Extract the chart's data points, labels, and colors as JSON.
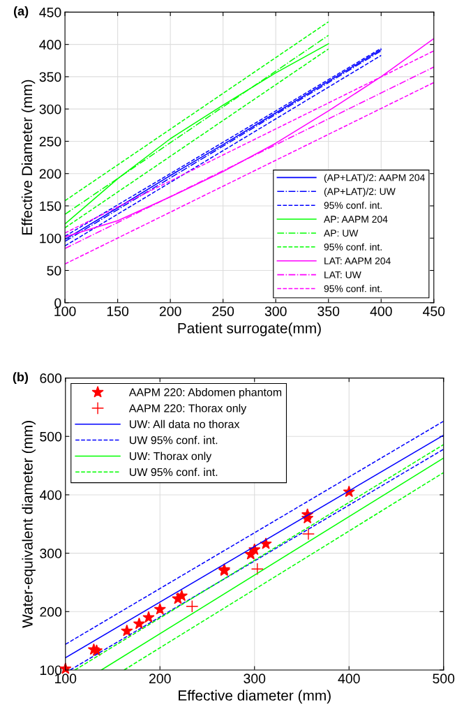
{
  "chart_data": [
    {
      "type": "line",
      "title": "(a)",
      "xlabel": "Patient surrogate(mm)",
      "ylabel": "Effective Diameter (mm)",
      "xlim": [
        100,
        450
      ],
      "xticks": [
        100,
        150,
        200,
        250,
        300,
        350,
        400,
        450
      ],
      "ylim": [
        0,
        450
      ],
      "yticks": [
        0,
        50,
        100,
        150,
        200,
        250,
        300,
        350,
        400,
        450
      ],
      "grid": true,
      "legend": "bottom right",
      "series": [
        {
          "name": "(AP+LAT)/2: AAPM 204",
          "color": "#0000ff",
          "line_style": "solid",
          "x": [
            100,
            150,
            200,
            250,
            300,
            350,
            400
          ],
          "values": [
            98,
            147,
            197,
            245,
            294,
            343,
            392
          ]
        },
        {
          "name": "(AP+LAT)/2: UW",
          "color": "#0000ff",
          "line_style": "dashdot",
          "x": [
            100,
            400
          ],
          "values": [
            95,
            390
          ]
        },
        {
          "name": "95% conf. int.",
          "color": "#0000ff",
          "line_style": "dashed",
          "x": [
            100,
            400
          ],
          "values": [
            103,
            394
          ]
        },
        {
          "color": "#0000ff",
          "line_style": "dashed",
          "x": [
            100,
            400
          ],
          "values": [
            88,
            383
          ]
        },
        {
          "name": "AP: AAPM 204",
          "color": "#00ff00",
          "line_style": "solid",
          "x": [
            100,
            150,
            200,
            250,
            300,
            350
          ],
          "values": [
            122,
            192,
            254,
            306,
            356,
            401
          ]
        },
        {
          "name": "AP: UW",
          "color": "#00ff00",
          "line_style": "dashdot",
          "x": [
            100,
            350
          ],
          "values": [
            137,
            414
          ]
        },
        {
          "name": "95% conf. int.",
          "color": "#00ff00",
          "line_style": "dashed",
          "x": [
            100,
            350
          ],
          "values": [
            158,
            435
          ]
        },
        {
          "color": "#00ff00",
          "line_style": "dashed",
          "x": [
            100,
            350
          ],
          "values": [
            116,
            393
          ]
        },
        {
          "name": "LAT: AAPM 204",
          "color": "#ff00ff",
          "line_style": "solid",
          "x": [
            100,
            150,
            200,
            250,
            300,
            350,
            400,
            450
          ],
          "values": [
            102,
            127,
            164,
            203,
            247,
            297,
            350,
            409
          ]
        },
        {
          "name": "LAT: UW",
          "color": "#ff00ff",
          "line_style": "dashdot",
          "x": [
            100,
            450
          ],
          "values": [
            84,
            365
          ]
        },
        {
          "name": "95% conf. int.",
          "color": "#ff00ff",
          "line_style": "dashed",
          "x": [
            100,
            450
          ],
          "values": [
            108,
            390
          ]
        },
        {
          "color": "#ff00ff",
          "line_style": "dashed",
          "x": [
            100,
            450
          ],
          "values": [
            60,
            341
          ]
        }
      ]
    },
    {
      "type": "line",
      "title": "(b)",
      "xlabel": "Effective diameter (mm)",
      "ylabel": "Water-equivalent diameter (mm)",
      "xlim": [
        100,
        500
      ],
      "xticks": [
        100,
        200,
        300,
        400,
        500
      ],
      "ylim": [
        100,
        600
      ],
      "yticks": [
        100,
        200,
        300,
        400,
        500,
        600
      ],
      "grid": true,
      "legend": "top left",
      "series": [
        {
          "name": "AAPM 220: Abdomen phantom",
          "type": "scatter",
          "marker": "star",
          "color": "#ff0000",
          "x": [
            100,
            130,
            133,
            165,
            178,
            188,
            200,
            219,
            223,
            268,
            268,
            296,
            300,
            312,
            356,
            356,
            400
          ],
          "values": [
            102,
            135,
            133,
            167,
            179,
            190,
            204,
            222,
            227,
            272,
            270,
            298,
            306,
            316,
            366,
            360,
            405
          ]
        },
        {
          "name": "AAPM 220: Thorax only",
          "type": "scatter",
          "marker": "cross",
          "color": "#ff0000",
          "x": [
            234,
            303,
            357
          ],
          "values": [
            209,
            273,
            333
          ]
        },
        {
          "name": "UW: All data no thorax",
          "color": "#0000ff",
          "line_style": "solid",
          "x": [
            100,
            500
          ],
          "values": [
            121,
            502
          ]
        },
        {
          "name": "UW 95% conf. int.",
          "color": "#0000ff",
          "line_style": "dashed",
          "x": [
            100,
            500
          ],
          "values": [
            144,
            526
          ]
        },
        {
          "color": "#0000ff",
          "line_style": "dashed",
          "x": [
            105,
            500
          ],
          "values": [
            100,
            478
          ]
        },
        {
          "name": "UW: Thorax only",
          "color": "#00ff00",
          "line_style": "solid",
          "x": [
            138,
            500
          ],
          "values": [
            100,
            463
          ]
        },
        {
          "name": "UW 95% conf. int.",
          "color": "#00ff00",
          "line_style": "dashed",
          "x": [
            110,
            500
          ],
          "values": [
            100,
            486
          ]
        },
        {
          "color": "#00ff00",
          "line_style": "dashed",
          "x": [
            162,
            500
          ],
          "values": [
            100,
            438
          ]
        }
      ]
    }
  ]
}
